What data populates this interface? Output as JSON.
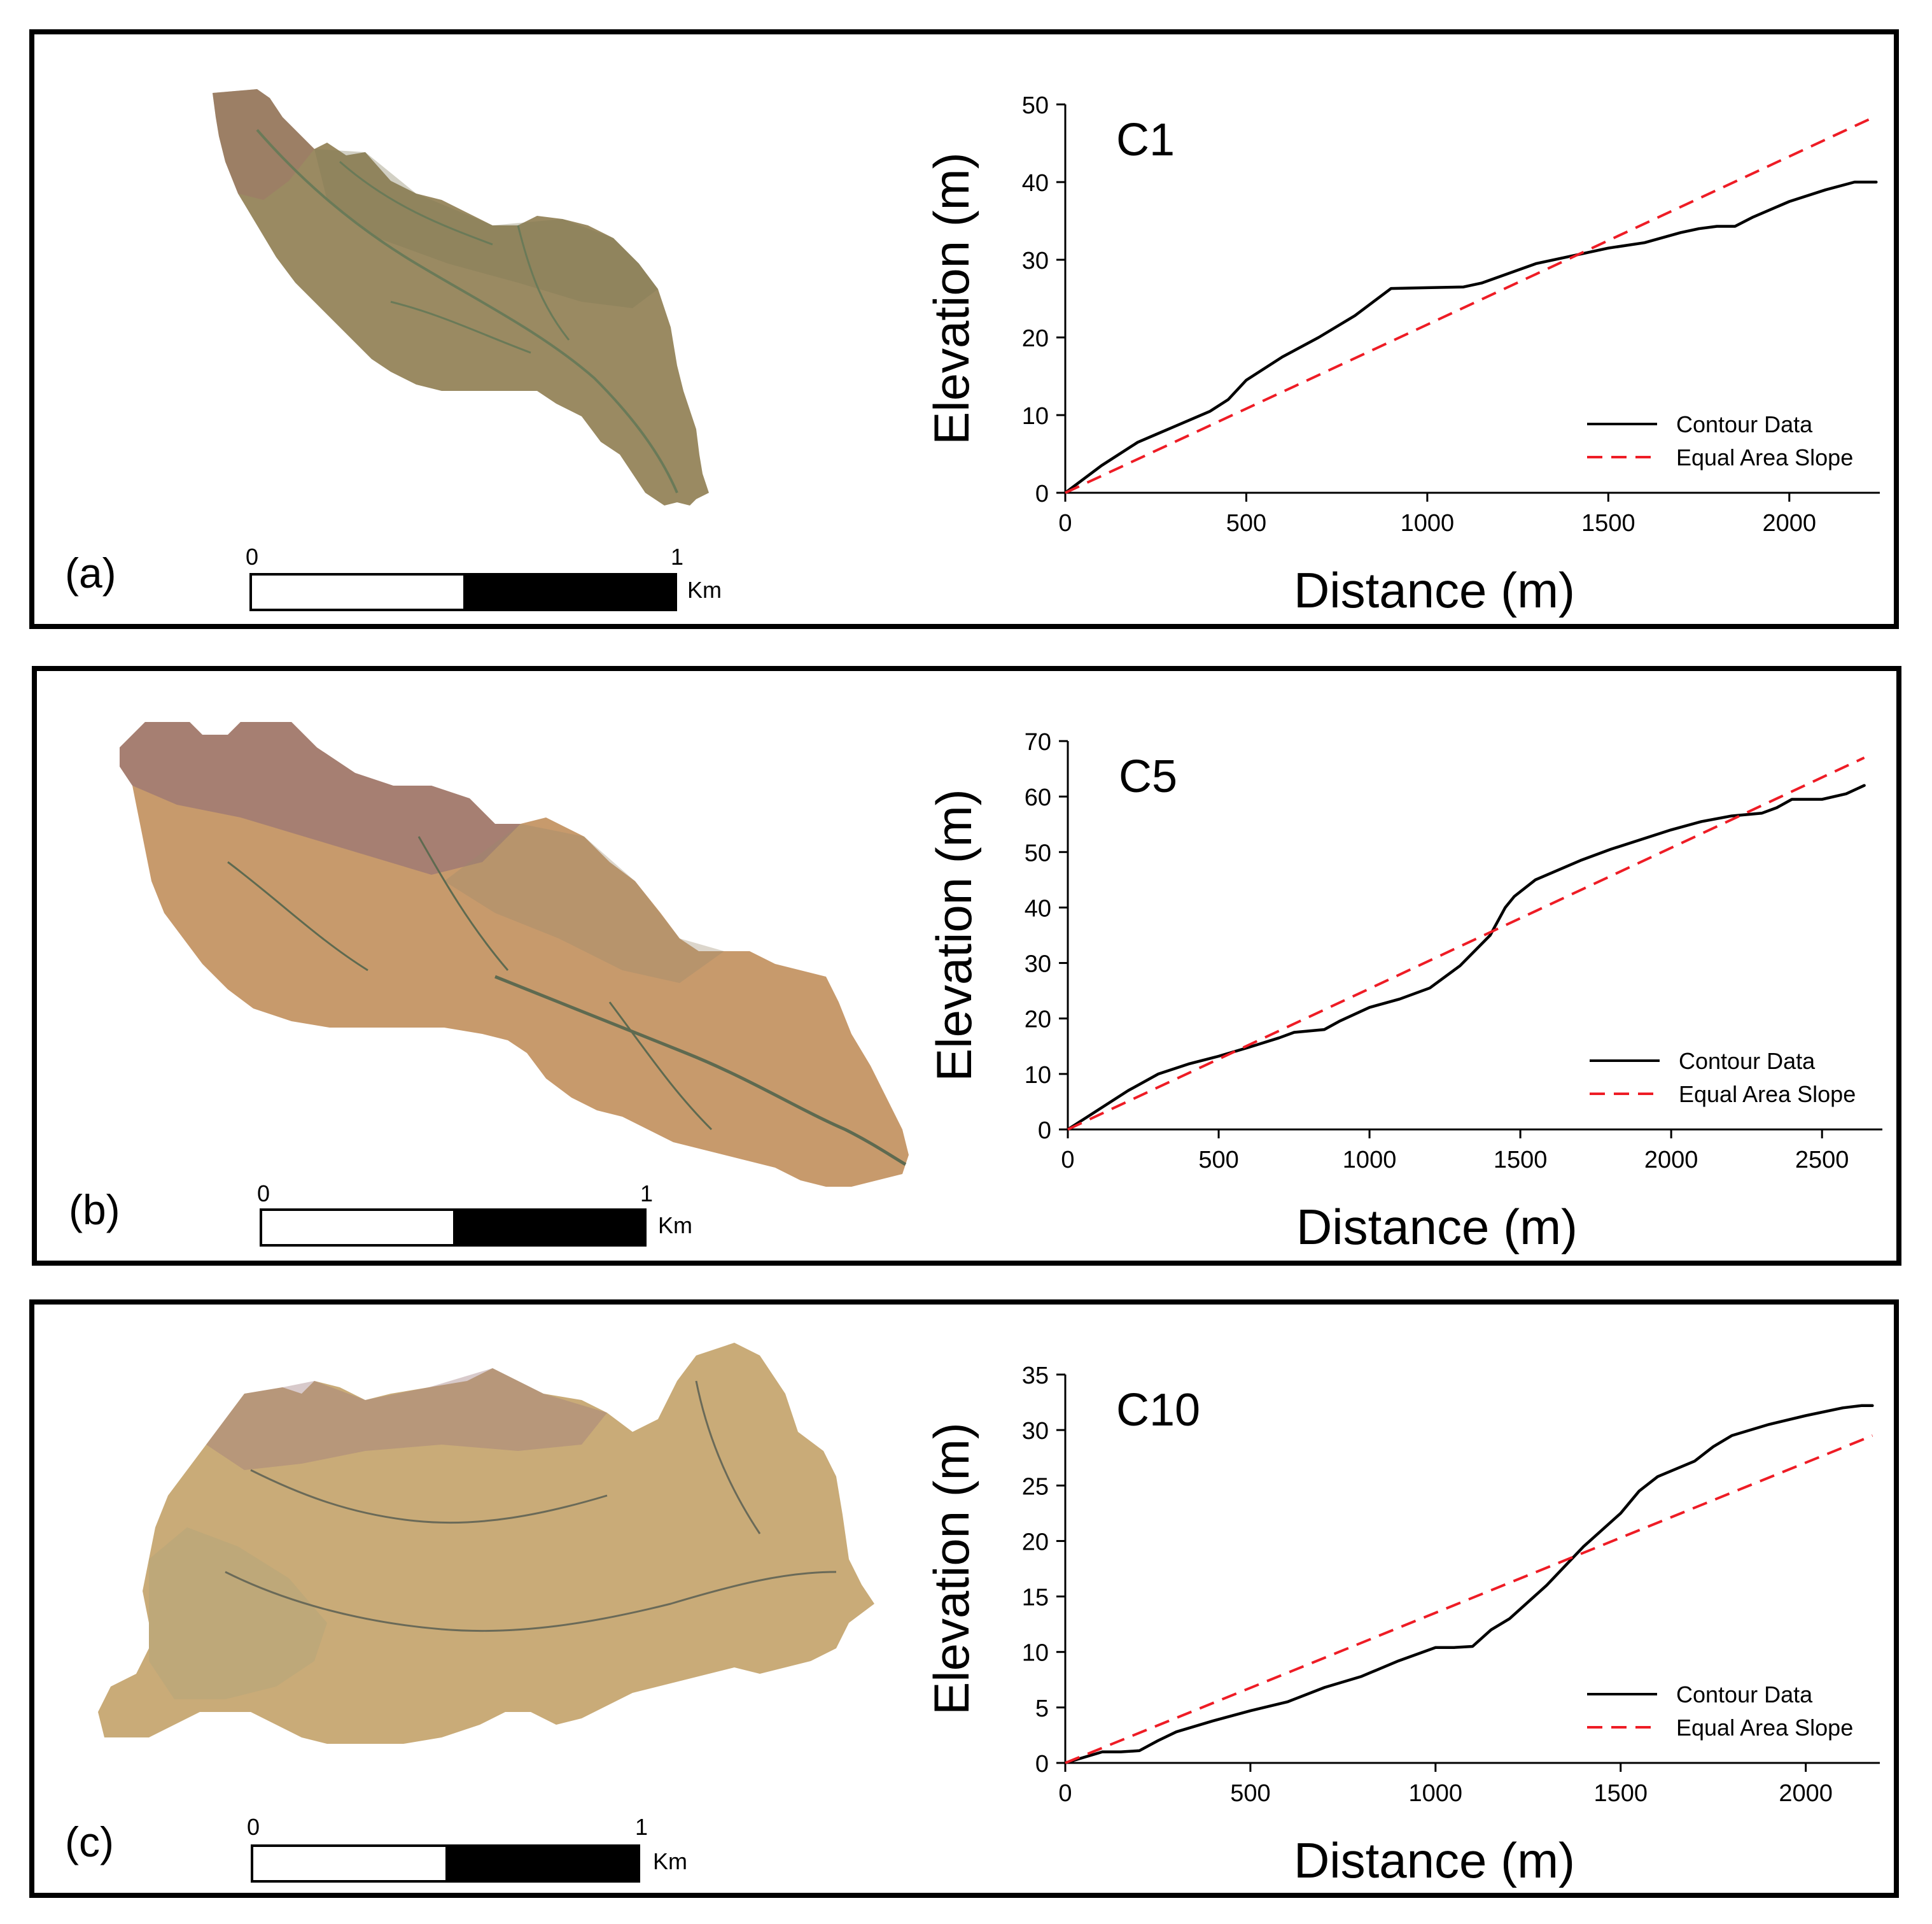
{
  "panels": [
    {
      "id": "a",
      "label": "(a)",
      "scalebar": {
        "zero": "0",
        "one": "1",
        "unit": "Km"
      },
      "map_colors": {
        "base": "#9a8a62",
        "dark": "#7f7856",
        "accent": "#a0706a",
        "channel": "#6a7a58"
      }
    },
    {
      "id": "b",
      "label": "(b)",
      "scalebar": {
        "zero": "0",
        "one": "1",
        "unit": "Km"
      },
      "map_colors": {
        "base": "#c79a6c",
        "dark": "#9a8a6c",
        "accent": "#8a6a78",
        "channel": "#5e6a50"
      }
    },
    {
      "id": "c",
      "label": "(c)",
      "scalebar": {
        "zero": "0",
        "one": "1",
        "unit": "Km"
      },
      "map_colors": {
        "base": "#c9ab78",
        "dark": "#a9a27a",
        "accent": "#9e7a7e",
        "channel": "#6a6a58"
      }
    }
  ],
  "chart_data": [
    {
      "type": "line",
      "title": "C1",
      "xlabel": "Distance (m)",
      "ylabel": "Elevation (m)",
      "xlim": [
        0,
        2250
      ],
      "ylim": [
        0,
        50
      ],
      "xticks": [
        0,
        500,
        1000,
        1500,
        2000
      ],
      "yticks": [
        0,
        10,
        20,
        30,
        40,
        50
      ],
      "legend_position": "bottom-right",
      "series": [
        {
          "name": "Contour Data",
          "style": "solid",
          "color": "#000000",
          "x": [
            0,
            100,
            200,
            250,
            300,
            400,
            450,
            500,
            600,
            700,
            800,
            900,
            1000,
            1100,
            1150,
            1300,
            1400,
            1500,
            1600,
            1700,
            1750,
            1800,
            1850,
            1900,
            2000,
            2100,
            2180,
            2240
          ],
          "y": [
            0,
            3.5,
            6.5,
            7.5,
            8.5,
            10.5,
            12,
            14.5,
            17.5,
            20,
            22.8,
            26.3,
            26.4,
            26.5,
            27,
            29.5,
            30.5,
            31.5,
            32.2,
            33.5,
            34,
            34.3,
            34.3,
            35.5,
            37.5,
            39,
            40,
            40
          ]
        },
        {
          "name": "Equal Area Slope",
          "style": "dashed",
          "color": "#ee1c25",
          "x": [
            0,
            2240
          ],
          "y": [
            0,
            48.5
          ]
        }
      ]
    },
    {
      "type": "line",
      "title": "C5",
      "xlabel": "Distance (m)",
      "ylabel": "Elevation (m)",
      "xlim": [
        0,
        2700
      ],
      "ylim": [
        0,
        70
      ],
      "xticks": [
        0,
        500,
        1000,
        1500,
        2000,
        2500
      ],
      "yticks": [
        0,
        10,
        20,
        30,
        40,
        50,
        60,
        70
      ],
      "legend_position": "bottom-right",
      "series": [
        {
          "name": "Contour Data",
          "style": "solid",
          "color": "#000000",
          "x": [
            0,
            100,
            200,
            300,
            400,
            500,
            600,
            700,
            750,
            850,
            900,
            1000,
            1100,
            1200,
            1300,
            1400,
            1450,
            1480,
            1550,
            1700,
            1800,
            2000,
            2100,
            2200,
            2300,
            2350,
            2400,
            2500,
            2580,
            2640
          ],
          "y": [
            0,
            3.5,
            7,
            10,
            11.8,
            13.2,
            14.8,
            16.5,
            17.5,
            18,
            19.5,
            22,
            23.5,
            25.5,
            29.5,
            35,
            40,
            42,
            45,
            48.5,
            50.5,
            54,
            55.5,
            56.5,
            57,
            58,
            59.5,
            59.5,
            60.5,
            62
          ]
        },
        {
          "name": "Equal Area Slope",
          "style": "dashed",
          "color": "#ee1c25",
          "x": [
            0,
            2640
          ],
          "y": [
            0,
            67
          ]
        }
      ]
    },
    {
      "type": "line",
      "title": "C10",
      "xlabel": "Distance (m)",
      "ylabel": "Elevation (m)",
      "xlim": [
        0,
        2200
      ],
      "ylim": [
        0,
        35
      ],
      "xticks": [
        0,
        500,
        1000,
        1500,
        2000
      ],
      "yticks": [
        0,
        5,
        10,
        15,
        20,
        25,
        30,
        35
      ],
      "legend_position": "bottom-right",
      "series": [
        {
          "name": "Contour Data",
          "style": "solid",
          "color": "#000000",
          "x": [
            0,
            100,
            150,
            200,
            250,
            300,
            400,
            500,
            600,
            700,
            800,
            900,
            1000,
            1050,
            1100,
            1150,
            1200,
            1300,
            1400,
            1500,
            1550,
            1600,
            1700,
            1750,
            1800,
            1900,
            2000,
            2100,
            2150,
            2180
          ],
          "y": [
            0,
            1,
            1,
            1.1,
            2,
            2.8,
            3.8,
            4.7,
            5.5,
            6.8,
            7.8,
            9.2,
            10.4,
            10.4,
            10.5,
            12,
            13,
            16,
            19.5,
            22.5,
            24.5,
            25.8,
            27.2,
            28.5,
            29.5,
            30.5,
            31.3,
            32,
            32.2,
            32.2
          ]
        },
        {
          "name": "Equal Area Slope",
          "style": "dashed",
          "color": "#ee1c25",
          "x": [
            0,
            2180
          ],
          "y": [
            0,
            29.5
          ]
        }
      ]
    }
  ]
}
